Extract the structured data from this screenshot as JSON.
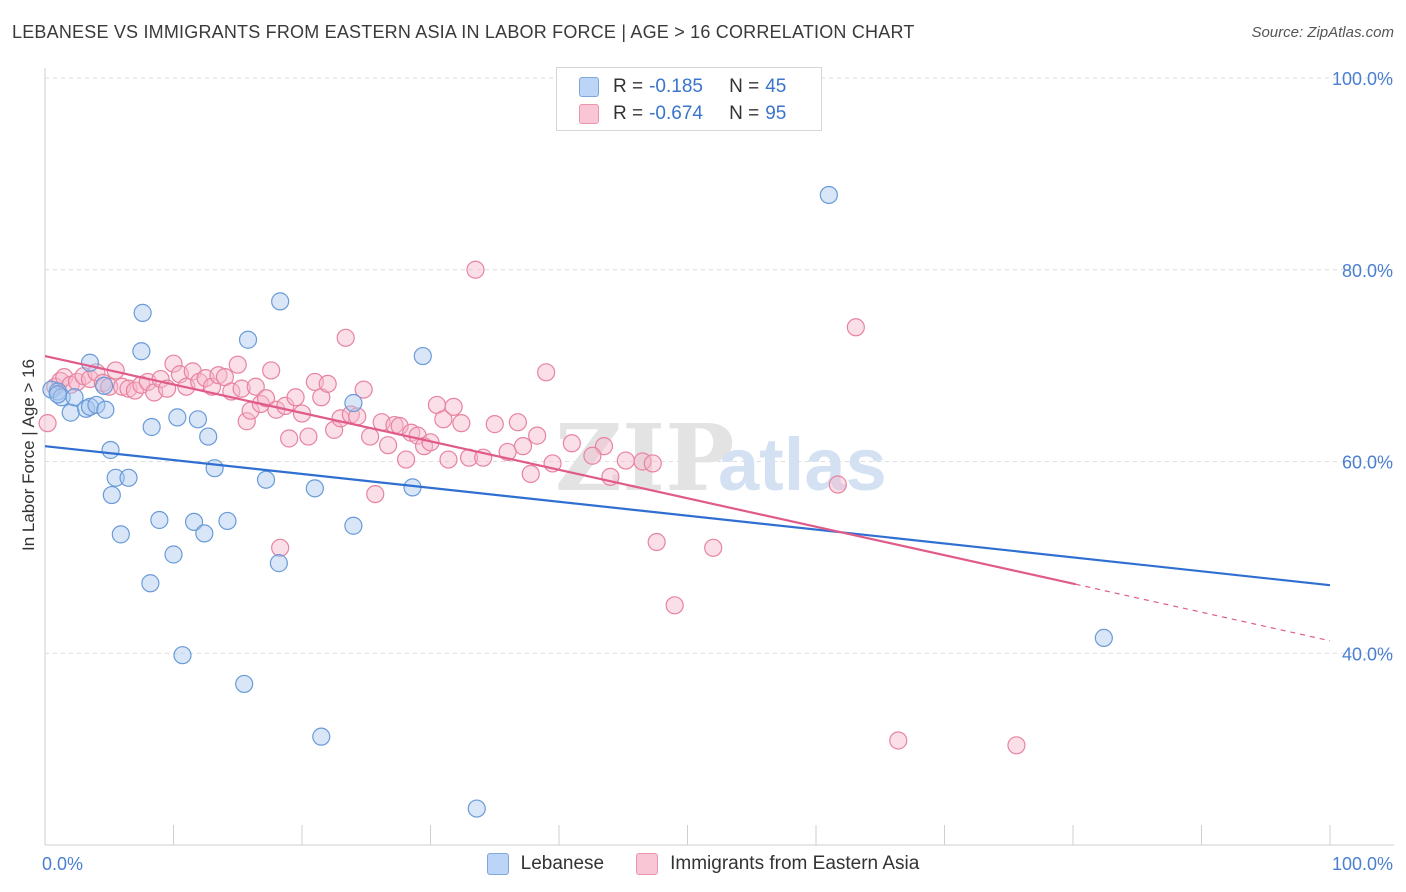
{
  "title": "LEBANESE VS IMMIGRANTS FROM EASTERN ASIA IN LABOR FORCE | AGE > 16 CORRELATION CHART",
  "source": "Source: ZipAtlas.com",
  "legend": {
    "rows": [
      {
        "r_label": "R = ",
        "r_value": "-0.185",
        "n_label": "N = ",
        "n_value": "45"
      },
      {
        "r_label": "R = ",
        "r_value": "-0.674",
        "n_label": "N = ",
        "n_value": "95"
      }
    ]
  },
  "colors": {
    "lebanese_fill": "#a9c8f0",
    "lebanese_stroke": "#6a9bd8",
    "lebanese_line": "#2f6fd1",
    "eastasia_fill": "#f7b8cb",
    "eastasia_stroke": "#e8839f",
    "eastasia_line": "#e05a8a"
  },
  "chart_data": {
    "type": "scatter",
    "ylabel": "In Labor Force | Age > 16",
    "xlim": [
      0,
      100
    ],
    "ylim": [
      20,
      100
    ],
    "x_tick_labels": [
      "0.0%",
      "100.0%"
    ],
    "y_ticks": [
      40,
      60,
      80,
      100
    ],
    "y_tick_labels": [
      "40.0%",
      "60.0%",
      "80.0%",
      "100.0%"
    ],
    "grid": true,
    "legend_position": "top-center",
    "watermark": "ZIPatlas",
    "series": [
      {
        "name": "Lebanese",
        "color": "#a9c8f0",
        "trend": {
          "x1": 0,
          "y1": 61.6,
          "x2": 100,
          "y2": 47.1
        },
        "points": [
          [
            0.5,
            67.5
          ],
          [
            1.0,
            67.3
          ],
          [
            1.3,
            66.7
          ],
          [
            2.0,
            65.1
          ],
          [
            2.3,
            66.7
          ],
          [
            3.2,
            65.5
          ],
          [
            3.5,
            65.7
          ],
          [
            3.5,
            70.3
          ],
          [
            4.0,
            65.9
          ],
          [
            4.6,
            67.9
          ],
          [
            4.7,
            65.4
          ],
          [
            5.1,
            61.2
          ],
          [
            5.2,
            56.5
          ],
          [
            5.5,
            58.3
          ],
          [
            5.9,
            52.4
          ],
          [
            6.5,
            58.3
          ],
          [
            7.5,
            71.5
          ],
          [
            7.6,
            75.5
          ],
          [
            8.2,
            47.3
          ],
          [
            8.3,
            63.6
          ],
          [
            8.9,
            53.9
          ],
          [
            10.0,
            50.3
          ],
          [
            10.3,
            64.6
          ],
          [
            10.7,
            39.8
          ],
          [
            11.6,
            53.7
          ],
          [
            11.9,
            64.4
          ],
          [
            12.4,
            52.5
          ],
          [
            12.7,
            62.6
          ],
          [
            13.2,
            59.3
          ],
          [
            14.2,
            53.8
          ],
          [
            15.5,
            36.8
          ],
          [
            15.8,
            72.7
          ],
          [
            17.2,
            58.1
          ],
          [
            18.2,
            49.4
          ],
          [
            18.3,
            76.7
          ],
          [
            21.0,
            57.2
          ],
          [
            21.5,
            31.3
          ],
          [
            24.0,
            53.3
          ],
          [
            24.0,
            66.1
          ],
          [
            28.6,
            57.3
          ],
          [
            29.4,
            71.0
          ],
          [
            33.6,
            23.8
          ],
          [
            61.0,
            87.8
          ],
          [
            82.4,
            41.6
          ],
          [
            1.0,
            67.0
          ]
        ]
      },
      {
        "name": "Immigrants from Eastern Asia",
        "color": "#f7b8cb",
        "trend": {
          "x1": 0,
          "y1": 71.0,
          "x2": 80.2,
          "y2": 47.2,
          "dash_x2": 100,
          "dash_y2": 41.3
        },
        "points": [
          [
            0.2,
            64.0
          ],
          [
            0.8,
            67.8
          ],
          [
            1.2,
            68.4
          ],
          [
            1.5,
            68.8
          ],
          [
            2.0,
            68.0
          ],
          [
            2.5,
            68.3
          ],
          [
            3.0,
            68.9
          ],
          [
            3.5,
            68.6
          ],
          [
            4.0,
            69.3
          ],
          [
            4.5,
            68.2
          ],
          [
            5.0,
            67.8
          ],
          [
            5.5,
            69.5
          ],
          [
            6.0,
            67.8
          ],
          [
            6.5,
            67.6
          ],
          [
            7.0,
            67.4
          ],
          [
            7.5,
            68.0
          ],
          [
            8.0,
            68.3
          ],
          [
            8.5,
            67.2
          ],
          [
            9.0,
            68.6
          ],
          [
            9.5,
            67.6
          ],
          [
            10.0,
            70.2
          ],
          [
            10.5,
            69.1
          ],
          [
            11.0,
            67.8
          ],
          [
            11.5,
            69.4
          ],
          [
            12.0,
            68.3
          ],
          [
            12.5,
            68.7
          ],
          [
            13.0,
            67.8
          ],
          [
            13.5,
            69.0
          ],
          [
            14.0,
            68.8
          ],
          [
            14.5,
            67.3
          ],
          [
            15.0,
            70.1
          ],
          [
            15.3,
            67.6
          ],
          [
            15.7,
            64.2
          ],
          [
            16.0,
            65.3
          ],
          [
            16.4,
            67.8
          ],
          [
            16.8,
            66.0
          ],
          [
            17.2,
            66.6
          ],
          [
            17.6,
            69.5
          ],
          [
            18.0,
            65.4
          ],
          [
            18.3,
            51.0
          ],
          [
            18.7,
            65.8
          ],
          [
            19.0,
            62.4
          ],
          [
            19.5,
            66.7
          ],
          [
            20.0,
            65.0
          ],
          [
            20.5,
            62.6
          ],
          [
            21.0,
            68.3
          ],
          [
            21.5,
            66.7
          ],
          [
            22.0,
            68.1
          ],
          [
            22.5,
            63.3
          ],
          [
            23.0,
            64.5
          ],
          [
            23.4,
            72.9
          ],
          [
            23.8,
            64.9
          ],
          [
            24.3,
            64.7
          ],
          [
            24.8,
            67.5
          ],
          [
            25.3,
            62.6
          ],
          [
            25.7,
            56.6
          ],
          [
            26.2,
            64.1
          ],
          [
            26.7,
            61.7
          ],
          [
            27.2,
            63.8
          ],
          [
            27.6,
            63.7
          ],
          [
            28.1,
            60.2
          ],
          [
            28.5,
            63.0
          ],
          [
            29.0,
            62.7
          ],
          [
            29.5,
            61.6
          ],
          [
            30.0,
            62.0
          ],
          [
            30.5,
            65.9
          ],
          [
            31.0,
            64.4
          ],
          [
            31.4,
            60.2
          ],
          [
            31.8,
            65.7
          ],
          [
            32.4,
            64.0
          ],
          [
            33.0,
            60.4
          ],
          [
            33.5,
            80.0
          ],
          [
            34.1,
            60.4
          ],
          [
            35.0,
            63.9
          ],
          [
            36.0,
            61.0
          ],
          [
            36.8,
            64.1
          ],
          [
            37.2,
            61.6
          ],
          [
            37.8,
            58.7
          ],
          [
            38.3,
            62.7
          ],
          [
            39.0,
            69.3
          ],
          [
            44.0,
            58.4
          ],
          [
            46.5,
            60.0
          ],
          [
            49.0,
            45.0
          ],
          [
            66.4,
            30.9
          ],
          [
            75.6,
            30.4
          ],
          [
            61.7,
            57.6
          ],
          [
            52.0,
            51.0
          ],
          [
            63.1,
            74.0
          ],
          [
            39.5,
            59.8
          ],
          [
            47.3,
            59.8
          ],
          [
            41.0,
            61.9
          ],
          [
            43.5,
            61.6
          ],
          [
            47.6,
            51.6
          ],
          [
            42.6,
            60.6
          ],
          [
            45.2,
            60.1
          ]
        ]
      }
    ]
  },
  "bottom_legend": [
    "Lebanese",
    "Immigrants from Eastern Asia"
  ]
}
